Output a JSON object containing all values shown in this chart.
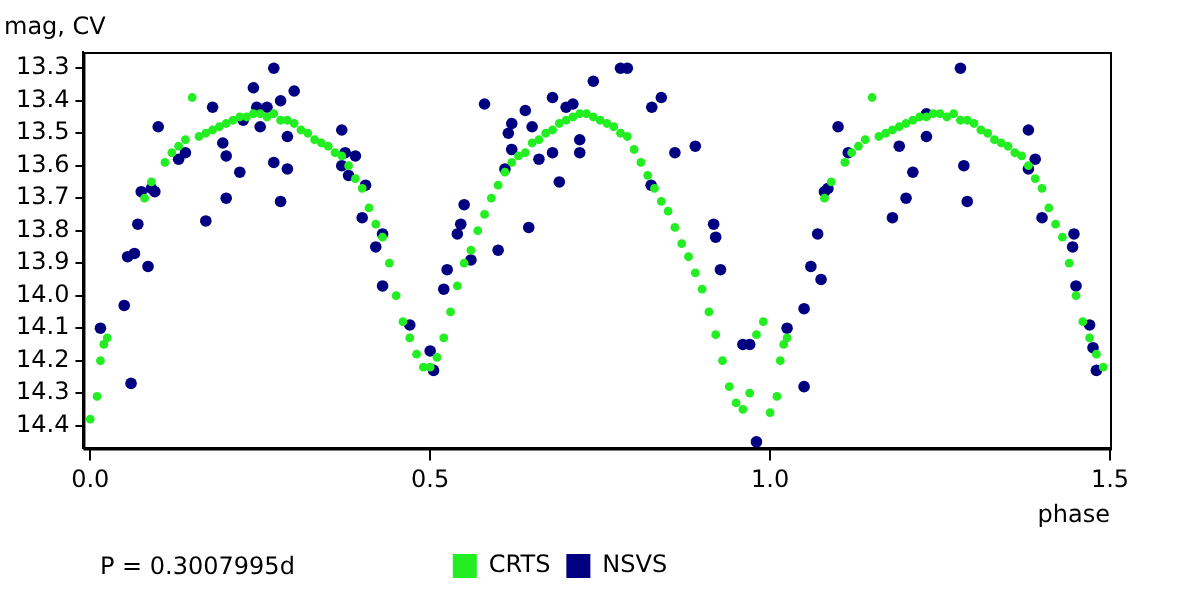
{
  "chart_data": {
    "type": "scatter",
    "xlabel": "phase",
    "ylabel": "mag, CV",
    "annotations": [
      "P = 0.3007995d"
    ],
    "xlim": [
      -0.01,
      1.5
    ],
    "ylim": [
      14.47,
      13.25
    ],
    "xticks": [
      {
        "value": 0,
        "label": "0.0"
      },
      0.5,
      {
        "value": 1,
        "label": "1.0"
      },
      1.5
    ],
    "yticks": [
      13.3,
      13.4,
      13.5,
      13.6,
      13.7,
      13.8,
      13.9,
      {
        "value": 14,
        "label": "14.0"
      },
      14.1,
      14.2,
      14.3,
      14.4
    ],
    "grid": false,
    "legend": "bottom",
    "marker": "circle",
    "series": [
      {
        "name": "CRTS",
        "color": "#22ee22",
        "x": [
          0,
          0.01,
          0.015,
          0.02,
          0.025,
          0.08,
          0.09,
          0.11,
          0.12,
          0.13,
          0.14,
          0.15,
          0.16,
          0.17,
          0.18,
          0.19,
          0.2,
          0.21,
          0.22,
          0.23,
          0.24,
          0.25,
          0.26,
          0.27,
          0.28,
          0.29,
          0.3,
          0.31,
          0.32,
          0.33,
          0.34,
          0.35,
          0.36,
          0.37,
          0.38,
          0.39,
          0.4,
          0.41,
          0.42,
          0.43,
          0.44,
          0.45,
          0.46,
          0.47,
          0.48,
          0.49,
          0.5,
          0.51,
          0.52,
          0.53,
          0.54,
          0.55,
          0.56,
          0.57,
          0.58,
          0.59,
          0.6,
          0.61,
          0.62,
          0.63,
          0.64,
          0.65,
          0.66,
          0.67,
          0.68,
          0.69,
          0.7,
          0.71,
          0.72,
          0.73,
          0.74,
          0.75,
          0.76,
          0.77,
          0.78,
          0.79,
          0.8,
          0.81,
          0.82,
          0.83,
          0.84,
          0.85,
          0.86,
          0.87,
          0.88,
          0.89,
          0.9,
          0.91,
          0.92,
          0.93,
          0.94,
          0.95,
          0.96,
          0.97,
          0.98,
          0.99,
          1.0,
          1.01,
          1.015,
          1.02,
          1.025,
          1.08,
          1.09,
          1.11,
          1.12,
          1.13,
          1.14,
          1.15,
          1.16,
          1.17,
          1.18,
          1.19,
          1.2,
          1.21,
          1.22,
          1.23,
          1.24,
          1.25,
          1.26,
          1.27,
          1.28,
          1.29,
          1.3,
          1.31,
          1.32,
          1.33,
          1.34,
          1.35,
          1.36,
          1.37,
          1.38,
          1.39,
          1.4,
          1.41,
          1.42,
          1.43,
          1.44,
          1.45,
          1.46,
          1.47,
          1.48,
          1.49
        ],
        "values": [
          14.38,
          14.31,
          14.2,
          14.15,
          14.13,
          13.7,
          13.65,
          13.59,
          13.56,
          13.54,
          13.52,
          13.39,
          13.51,
          13.5,
          13.49,
          13.48,
          13.47,
          13.46,
          13.45,
          13.45,
          13.44,
          13.44,
          13.45,
          13.44,
          13.46,
          13.46,
          13.47,
          13.49,
          13.5,
          13.52,
          13.53,
          13.54,
          13.56,
          13.57,
          13.6,
          13.64,
          13.67,
          13.73,
          13.78,
          13.82,
          13.9,
          14.0,
          14.08,
          14.13,
          14.18,
          14.22,
          14.22,
          14.19,
          14.13,
          14.05,
          13.97,
          13.9,
          13.86,
          13.8,
          13.75,
          13.7,
          13.66,
          13.62,
          13.59,
          13.57,
          13.56,
          13.53,
          13.52,
          13.5,
          13.49,
          13.47,
          13.46,
          13.45,
          13.44,
          13.44,
          13.45,
          13.46,
          13.47,
          13.48,
          13.5,
          13.51,
          13.55,
          13.59,
          13.63,
          13.67,
          13.71,
          13.74,
          13.79,
          13.84,
          13.88,
          13.93,
          13.98,
          14.05,
          14.12,
          14.2,
          14.28,
          14.33,
          14.35,
          14.3,
          14.12,
          14.08,
          14.36,
          14.31,
          14.2,
          14.15,
          14.13,
          13.7,
          13.65,
          13.59,
          13.56,
          13.54,
          13.52,
          13.39,
          13.51,
          13.5,
          13.49,
          13.48,
          13.47,
          13.46,
          13.45,
          13.45,
          13.44,
          13.44,
          13.45,
          13.44,
          13.46,
          13.46,
          13.47,
          13.49,
          13.5,
          13.52,
          13.53,
          13.54,
          13.56,
          13.57,
          13.6,
          13.64,
          13.67,
          13.73,
          13.78,
          13.82,
          13.9,
          14.0,
          14.08,
          14.13,
          14.18,
          14.22
        ]
      },
      {
        "name": "NSVS",
        "color": "#000080",
        "x": [
          0.015,
          0.05,
          0.055,
          0.06,
          0.065,
          0.07,
          0.075,
          0.085,
          0.09,
          0.095,
          0.1,
          0.13,
          0.14,
          0.17,
          0.18,
          0.195,
          0.2,
          0.2,
          0.22,
          0.225,
          0.24,
          0.245,
          0.25,
          0.26,
          0.27,
          0.27,
          0.28,
          0.28,
          0.29,
          0.29,
          0.3,
          0.37,
          0.37,
          0.375,
          0.38,
          0.39,
          0.4,
          0.405,
          0.42,
          0.43,
          0.43,
          0.47,
          0.5,
          0.505,
          0.52,
          0.525,
          0.54,
          0.545,
          0.55,
          0.56,
          0.58,
          0.6,
          0.61,
          0.615,
          0.62,
          0.62,
          0.64,
          0.645,
          0.65,
          0.66,
          0.68,
          0.68,
          0.69,
          0.7,
          0.71,
          0.72,
          0.72,
          0.74,
          0.78,
          0.79,
          0.825,
          0.826,
          0.84,
          0.86,
          0.89,
          0.917,
          0.92,
          0.927,
          0.96,
          0.97,
          0.98,
          1.025,
          1.05,
          1.05,
          1.06,
          1.07,
          1.075,
          1.08,
          1.085,
          1.1,
          1.115,
          1.18,
          1.19,
          1.2,
          1.21,
          1.23,
          1.23,
          1.28,
          1.285,
          1.29,
          1.38,
          1.38,
          1.39,
          1.4,
          1.445,
          1.447,
          1.45,
          1.47,
          1.475,
          1.48
        ],
        "values": [
          14.1,
          14.03,
          13.88,
          14.27,
          13.87,
          13.78,
          13.68,
          13.91,
          13.67,
          13.68,
          13.48,
          13.58,
          13.56,
          13.77,
          13.42,
          13.53,
          13.57,
          13.7,
          13.62,
          13.46,
          13.36,
          13.42,
          13.48,
          13.42,
          13.3,
          13.59,
          13.4,
          13.71,
          13.61,
          13.51,
          13.37,
          13.49,
          13.6,
          13.56,
          13.63,
          13.57,
          13.76,
          13.66,
          13.85,
          13.81,
          13.97,
          14.09,
          14.17,
          14.23,
          13.98,
          13.92,
          13.81,
          13.78,
          13.72,
          13.89,
          13.41,
          13.86,
          13.61,
          13.5,
          13.47,
          13.55,
          13.43,
          13.79,
          13.48,
          13.58,
          13.56,
          13.39,
          13.65,
          13.42,
          13.41,
          13.52,
          13.56,
          13.34,
          13.3,
          13.3,
          13.66,
          13.42,
          13.39,
          13.56,
          13.54,
          13.78,
          13.82,
          13.92,
          14.15,
          14.15,
          14.45,
          14.1,
          14.04,
          14.28,
          13.91,
          13.81,
          13.95,
          13.68,
          13.67,
          13.48,
          13.56,
          13.76,
          13.54,
          13.7,
          13.62,
          13.44,
          13.51,
          13.3,
          13.6,
          13.71,
          13.49,
          13.61,
          13.58,
          13.76,
          13.85,
          13.81,
          13.97,
          14.09,
          14.16,
          14.23
        ]
      }
    ]
  }
}
